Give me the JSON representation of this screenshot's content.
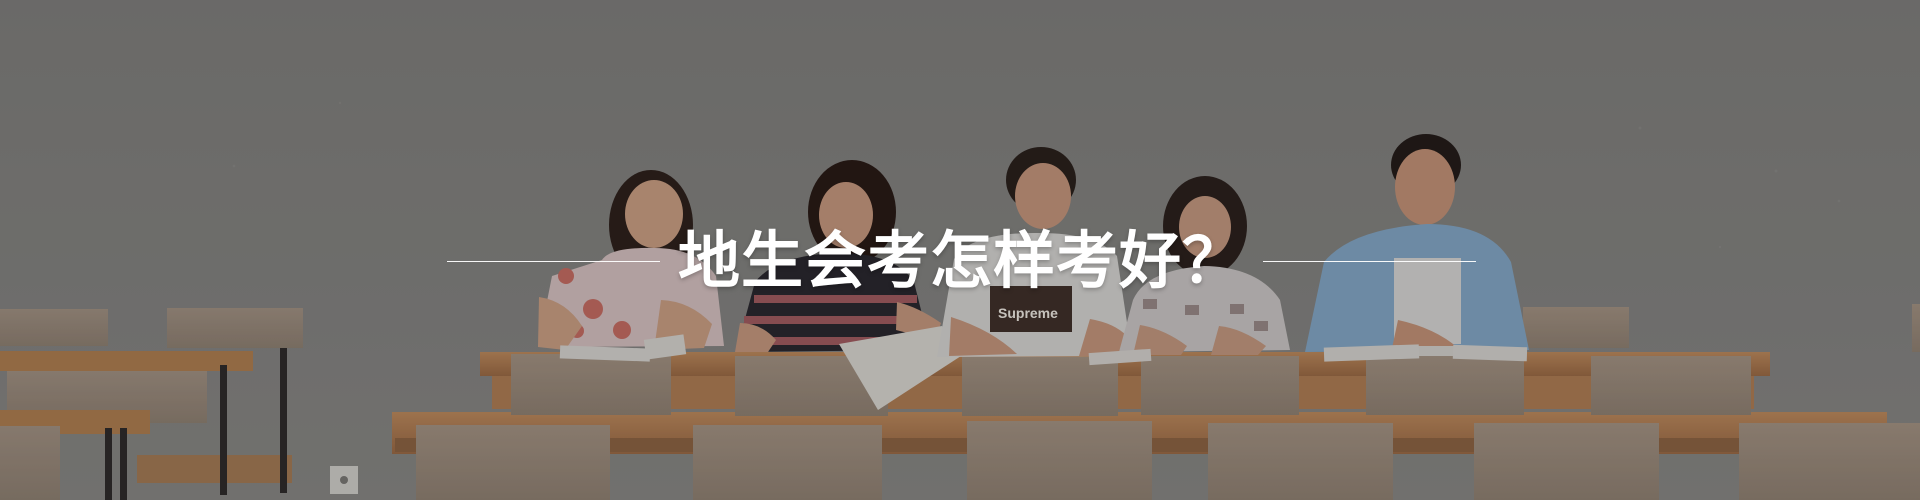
{
  "banner": {
    "headline": "地生会考怎样考好？",
    "shirt_text": "Supreme"
  },
  "colors": {
    "wall": "#848381",
    "overlay": "#000000",
    "desk": "#b9875d",
    "chair": "#9f8f80",
    "headline": "#ffffff"
  }
}
